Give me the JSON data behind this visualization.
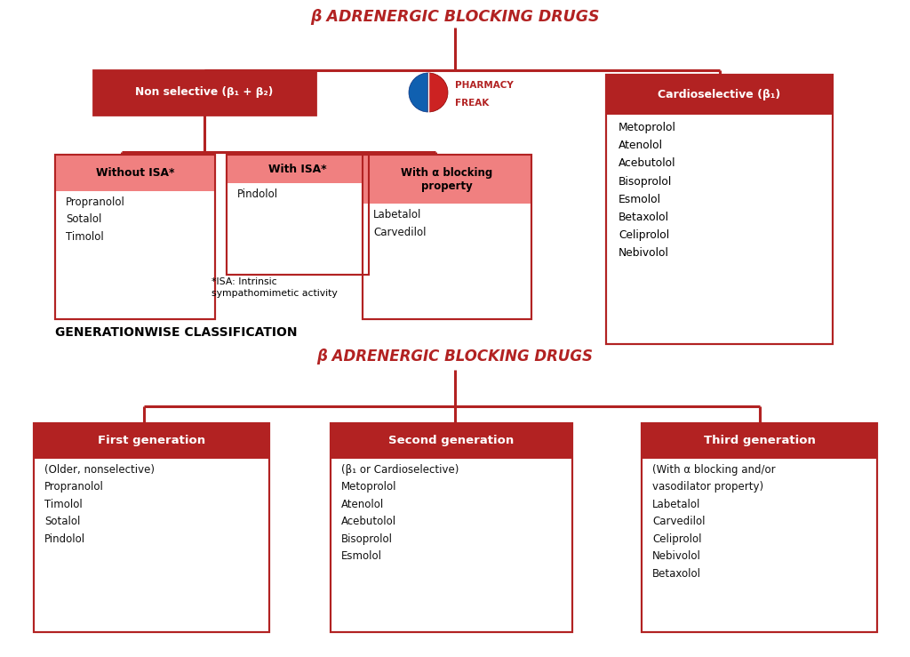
{
  "bg_color": "#FFFFFF",
  "dark_red": "#B22222",
  "light_pink": "#F4A9A8",
  "salmon_header": "#F08080",
  "title_color": "#B22222",
  "text_color": "#111111",
  "title1": "β ADRENERGIC BLOCKING DRUGS",
  "title2": "β ADRENERGIC BLOCKING DRUGS",
  "gen_label": "GENERATIONWISE CLASSIFICATION",
  "non_sel": "Non selective (β₁ + β₂)",
  "cardiosel": "Cardioselective (β₁)",
  "wo_isa": "Without ISA*",
  "w_isa": "With ISA*",
  "w_alpha": "With α blocking\nproperty",
  "wo_isa_drugs": "Propranolol\nSotalol\nTimolol",
  "w_isa_drugs": "Pindolol",
  "isa_note": "*ISA: Intrinsic\nsympathomimetic activity",
  "w_alpha_drugs": "Labetalol\nCarvedilol",
  "cs_drugs": "Metoprolol\nAtenolol\nAcebutolol\nBisoprolol\nEsmolol\nBetaxolol\nCeliprolol\nNebivolol",
  "fg": "First generation",
  "sg": "Second generation",
  "tg": "Third generation",
  "fg_drugs": "(Older, nonselective)\nPropranolol\nTimolol\nSotalol\nPindolol",
  "sg_drugs": "(β₁ or Cardioselective)\nMetoprolol\nAtenolol\nAcebutolol\nBisoprolol\nEsmolol",
  "tg_drugs": "(With α blocking and/or\nvasodilator property)\nLabetalol\nCarvedilol\nCeliprolol\nNebivolol\nBetaxolol"
}
